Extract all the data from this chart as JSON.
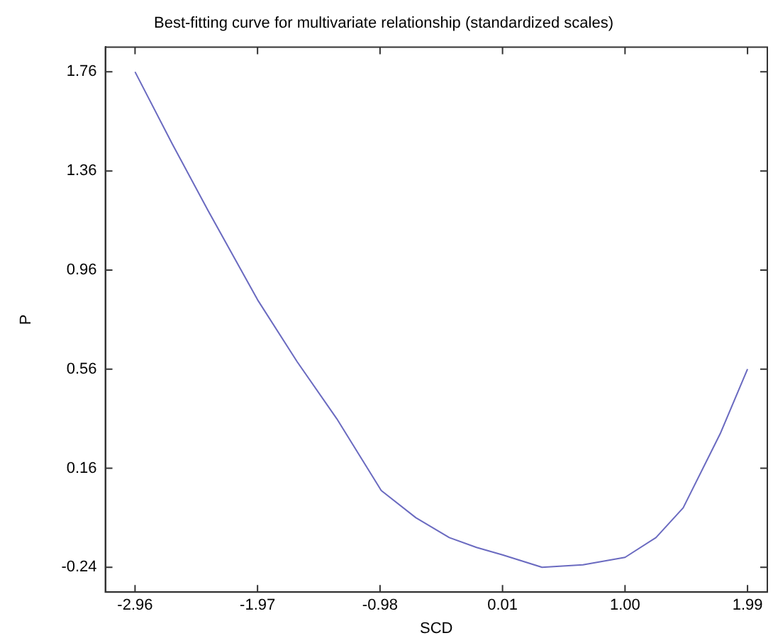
{
  "chart_data": {
    "type": "line",
    "title": "Best-fitting curve for multivariate relationship (standardized scales)",
    "xlabel": "SCD",
    "ylabel": "P",
    "x": [
      -2.96,
      -2.66,
      -2.37,
      -1.97,
      -1.65,
      -1.33,
      -0.97,
      -0.69,
      -0.42,
      -0.2,
      0.01,
      0.33,
      0.66,
      1.0,
      1.25,
      1.47,
      1.77,
      1.99
    ],
    "series": [
      {
        "color": "#6a6ac0",
        "values": [
          1.76,
          1.47,
          1.2,
          0.84,
          0.59,
          0.36,
          0.07,
          -0.04,
          -0.12,
          -0.16,
          -0.19,
          -0.24,
          -0.23,
          -0.2,
          -0.12,
          0.0,
          0.3,
          0.56
        ]
      }
    ],
    "xlim": [
      -3.2,
      2.15
    ],
    "xticks": [
      {
        "value": -2.96,
        "label": "-2.96"
      },
      {
        "value": -1.97,
        "label": "-1.97"
      },
      {
        "value": -0.98,
        "label": "-0.98"
      },
      {
        "value": 0.01,
        "label": "0.01"
      },
      {
        "value": 1.0,
        "label": "1.00"
      },
      {
        "value": 1.99,
        "label": "1.99"
      }
    ],
    "ylim": [
      -0.34,
      1.86
    ],
    "yticks": [
      {
        "value": -0.24,
        "label": "-0.24"
      },
      {
        "value": 0.16,
        "label": "0.16"
      },
      {
        "value": 0.56,
        "label": "0.56"
      },
      {
        "value": 0.96,
        "label": "0.96"
      },
      {
        "value": 1.36,
        "label": "1.36"
      },
      {
        "value": 1.76,
        "label": "1.76"
      }
    ],
    "grid": false,
    "legend": false,
    "marker": "none",
    "line_style": "solid"
  }
}
